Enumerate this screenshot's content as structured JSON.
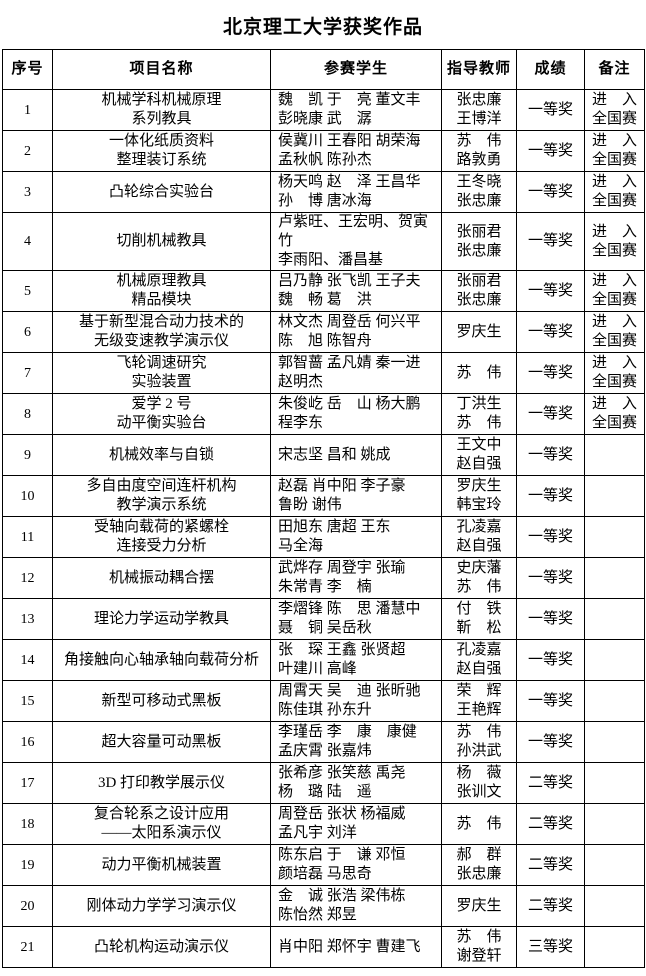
{
  "title": "北京理工大学获奖作品",
  "table": {
    "headers": [
      "序号",
      "项目名称",
      "参赛学生",
      "指导教师",
      "成绩",
      "备注"
    ],
    "rows": [
      {
        "no": "1",
        "project": "机械学科机械原理\n系列教具",
        "students": "魏　凯 于　亮 董文丰\n彭晓康 武　潺",
        "advisors": "张忠廉\n王博洋",
        "award": "一等奖",
        "note": "进　入\n全国赛"
      },
      {
        "no": "2",
        "project": "一体化纸质资料\n整理装订系统",
        "students": "侯冀川 王春阳 胡荣海\n孟秋帆 陈孙杰",
        "advisors": "苏　伟\n路敦勇",
        "award": "一等奖",
        "note": "进　入\n全国赛"
      },
      {
        "no": "3",
        "project": "凸轮综合实验台",
        "students": "杨天鸣 赵　泽 王昌华\n孙　博 唐冰海",
        "advisors": "王冬晓\n张忠廉",
        "award": "一等奖",
        "note": "进　入\n全国赛"
      },
      {
        "no": "4",
        "project": "切削机械教具",
        "students": "卢紫旺、王宏明、贺寅竹\n李雨阳、潘昌基",
        "advisors": "张丽君\n张忠廉",
        "award": "一等奖",
        "note": "进　入\n全国赛"
      },
      {
        "no": "5",
        "project": "机械原理教具\n精品模块",
        "students": "吕乃静 张飞凯 王子夫\n魏　畅 葛　洪",
        "advisors": "张丽君\n张忠廉",
        "award": "一等奖",
        "note": "进　入\n全国赛"
      },
      {
        "no": "6",
        "project": "基于新型混合动力技术的\n无级变速教学演示仪",
        "students": "林文杰 周登岳 何兴平\n陈　旭 陈智舟",
        "advisors": "罗庆生",
        "award": "一等奖",
        "note": "进　入\n全国赛"
      },
      {
        "no": "7",
        "project": "飞轮调速研究\n实验装置",
        "students": "郭智蔷 孟凡婧 秦一进\n赵明杰",
        "advisors": "苏　伟",
        "award": "一等奖",
        "note": "进　入\n全国赛"
      },
      {
        "no": "8",
        "project": "爱学 2 号\n动平衡实验台",
        "students": "朱俊屹 岳　山 杨大鹏\n程李东",
        "advisors": "丁洪生\n苏　伟",
        "award": "一等奖",
        "note": "进　入\n全国赛"
      },
      {
        "no": "9",
        "project": "机械效率与自锁",
        "students": "宋志坚 昌和 姚成",
        "advisors": "王文中\n赵自强",
        "award": "一等奖",
        "note": ""
      },
      {
        "no": "10",
        "project": "多自由度空间连杆机构\n教学演示系统",
        "students": "赵磊 肖中阳 李子豪\n鲁盼 谢伟",
        "advisors": "罗庆生\n韩宝玲",
        "award": "一等奖",
        "note": ""
      },
      {
        "no": "11",
        "project": "受轴向载荷的紧螺栓\n连接受力分析",
        "students": "田旭东 唐超 王东\n马全海",
        "advisors": "孔凌嘉\n赵自强",
        "award": "一等奖",
        "note": ""
      },
      {
        "no": "12",
        "project": "机械振动耦合摆",
        "students": "武烨存 周登宇 张瑜\n朱常青 李　楠",
        "advisors": "史庆藩\n苏　伟",
        "award": "一等奖",
        "note": ""
      },
      {
        "no": "13",
        "project": "理论力学运动学教具",
        "students": "李熠锋 陈　思 潘慧中\n聂　铜 吴岳秋",
        "advisors": "付　铁\n靳　松",
        "award": "一等奖",
        "note": ""
      },
      {
        "no": "14",
        "project": "角接触向心轴承轴向载荷分析",
        "students": "张　琛 王鑫 张贤超\n叶建川 高峰",
        "advisors": "孔凌嘉\n赵自强",
        "award": "一等奖",
        "note": ""
      },
      {
        "no": "15",
        "project": "新型可移动式黑板",
        "students": "周霄天 吴　迪 张昕驰\n陈佳琪 孙东升",
        "advisors": "荣　辉\n王艳辉",
        "award": "一等奖",
        "note": ""
      },
      {
        "no": "16",
        "project": "超大容量可动黑板",
        "students": "李瑾岳 李　康　康健\n孟庆霄 张嘉炜",
        "advisors": "苏　伟\n孙洪武",
        "award": "一等奖",
        "note": ""
      },
      {
        "no": "17",
        "project": "3D 打印教学展示仪",
        "students": "张希彦 张笑慈 禹尧\n杨　璐 陆　遥",
        "advisors": "杨　薇\n张训文",
        "award": "二等奖",
        "note": ""
      },
      {
        "no": "18",
        "project": "复合轮系之设计应用\n——太阳系演示仪",
        "students": "周登岳 张状 杨福威\n孟凡宇 刘洋",
        "advisors": "苏　伟",
        "award": "二等奖",
        "note": ""
      },
      {
        "no": "19",
        "project": "动力平衡机械装置",
        "students": "陈东启 于　谦 邓恒\n颜培磊 马思奇",
        "advisors": "郝　群\n张忠廉",
        "award": "二等奖",
        "note": ""
      },
      {
        "no": "20",
        "project": "刚体动力学学习演示仪",
        "students": "金　诚 张浩 梁伟栋\n陈怡然 郑昱",
        "advisors": "罗庆生",
        "award": "二等奖",
        "note": ""
      },
      {
        "no": "21",
        "project": "凸轮机构运动演示仪",
        "students": "肖中阳 郑怀宇 曹建飞",
        "advisors": "苏　伟\n谢登轩",
        "award": "三等奖",
        "note": ""
      }
    ]
  }
}
